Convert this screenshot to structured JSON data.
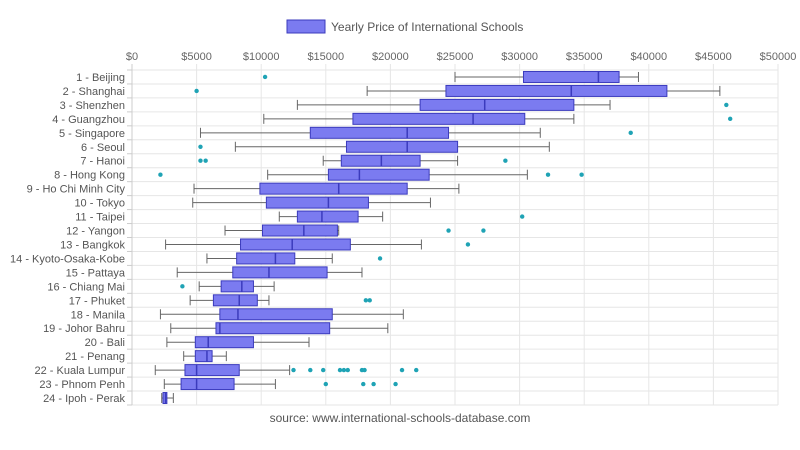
{
  "legend": {
    "label": "Yearly Price of International Schools"
  },
  "source": "source: www.international-schools-database.com",
  "colors": {
    "box_fill": "#7b7bf0",
    "box_stroke": "#3b3bbd",
    "whisker": "#666666",
    "outlier": "#1fa3b5",
    "grid": "#e6e6e6"
  },
  "chart_data": {
    "type": "boxplot",
    "orientation": "horizontal",
    "xlim": [
      0,
      50000
    ],
    "x_ticks": [
      "$0",
      "$5000",
      "$10000",
      "$15000",
      "$20000",
      "$25000",
      "$30000",
      "$35000",
      "$40000",
      "$45000",
      "$50000"
    ],
    "grid": true,
    "legend_position": "top",
    "series_name": "Yearly Price of International Schools",
    "categories": [
      "1 - Beijing",
      "2 - Shanghai",
      "3 - Shenzhen",
      "4 - Guangzhou",
      "5 - Singapore",
      "6 - Seoul",
      "7 - Hanoi",
      "8 - Hong Kong",
      "9 - Ho Chi Minh City",
      "10 - Tokyo",
      "11 - Taipei",
      "12 - Yangon",
      "13 - Bangkok",
      "14 - Kyoto-Osaka-Kobe",
      "15 - Pattaya",
      "16 - Chiang Mai",
      "17 - Phuket",
      "18 - Manila",
      "19 - Johor Bahru",
      "20 - Bali",
      "21 - Penang",
      "22 - Kuala Lumpur",
      "23 - Phnom Penh",
      "24 - Ipoh - Perak"
    ],
    "boxes": [
      {
        "min": 25000,
        "q1": 30300,
        "median": 36100,
        "q3": 37700,
        "max": 39200,
        "outliers": [
          10300
        ]
      },
      {
        "min": 18200,
        "q1": 24300,
        "median": 34000,
        "q3": 41400,
        "max": 45500,
        "outliers": [
          5000
        ]
      },
      {
        "min": 12800,
        "q1": 22300,
        "median": 27300,
        "q3": 34200,
        "max": 37000,
        "outliers": [
          46000
        ]
      },
      {
        "min": 10200,
        "q1": 17100,
        "median": 26400,
        "q3": 30400,
        "max": 34200,
        "outliers": [
          46300
        ]
      },
      {
        "min": 5300,
        "q1": 13800,
        "median": 21300,
        "q3": 24500,
        "max": 31600,
        "outliers": [
          38600
        ]
      },
      {
        "min": 8000,
        "q1": 16600,
        "median": 21300,
        "q3": 25200,
        "max": 32300,
        "outliers": [
          5300
        ]
      },
      {
        "min": 14800,
        "q1": 16200,
        "median": 19300,
        "q3": 22300,
        "max": 25200,
        "outliers": [
          5300,
          5700,
          28900
        ]
      },
      {
        "min": 10500,
        "q1": 15200,
        "median": 17600,
        "q3": 23000,
        "max": 30600,
        "outliers": [
          2200,
          32200,
          34800
        ]
      },
      {
        "min": 4800,
        "q1": 9900,
        "median": 16000,
        "q3": 21300,
        "max": 25300,
        "outliers": []
      },
      {
        "min": 4700,
        "q1": 10400,
        "median": 15200,
        "q3": 18300,
        "max": 23100,
        "outliers": []
      },
      {
        "min": 11400,
        "q1": 12800,
        "median": 14700,
        "q3": 17500,
        "max": 19400,
        "outliers": [
          30200
        ]
      },
      {
        "min": 7200,
        "q1": 10100,
        "median": 13300,
        "q3": 15900,
        "max": 16000,
        "outliers": [
          24500,
          27200
        ]
      },
      {
        "min": 2600,
        "q1": 8400,
        "median": 12400,
        "q3": 16900,
        "max": 22400,
        "outliers": [
          26000
        ]
      },
      {
        "min": 5800,
        "q1": 8100,
        "median": 11100,
        "q3": 12600,
        "max": 15500,
        "outliers": [
          19200
        ]
      },
      {
        "min": 3500,
        "q1": 7800,
        "median": 10600,
        "q3": 15100,
        "max": 17800,
        "outliers": []
      },
      {
        "min": 5200,
        "q1": 6900,
        "median": 8500,
        "q3": 9400,
        "max": 11000,
        "outliers": [
          3900
        ]
      },
      {
        "min": 4500,
        "q1": 6300,
        "median": 8300,
        "q3": 9700,
        "max": 10600,
        "outliers": [
          18100,
          18400
        ]
      },
      {
        "min": 2200,
        "q1": 6800,
        "median": 8200,
        "q3": 15500,
        "max": 21000,
        "outliers": []
      },
      {
        "min": 3000,
        "q1": 6500,
        "median": 6800,
        "q3": 15300,
        "max": 19800,
        "outliers": []
      },
      {
        "min": 2700,
        "q1": 4900,
        "median": 5900,
        "q3": 9400,
        "max": 13700,
        "outliers": []
      },
      {
        "min": 4000,
        "q1": 4900,
        "median": 5800,
        "q3": 6200,
        "max": 7300,
        "outliers": []
      },
      {
        "min": 1800,
        "q1": 4100,
        "median": 5000,
        "q3": 8300,
        "max": 12200,
        "outliers": [
          12500,
          13800,
          14800,
          16100,
          16400,
          16700,
          17800,
          18000,
          20900,
          22000
        ]
      },
      {
        "min": 2500,
        "q1": 3800,
        "median": 5000,
        "q3": 7900,
        "max": 11100,
        "outliers": [
          15000,
          17900,
          18700,
          20400
        ]
      },
      {
        "min": 2300,
        "q1": 2400,
        "median": 2600,
        "q3": 2700,
        "max": 3200,
        "outliers": []
      }
    ]
  }
}
